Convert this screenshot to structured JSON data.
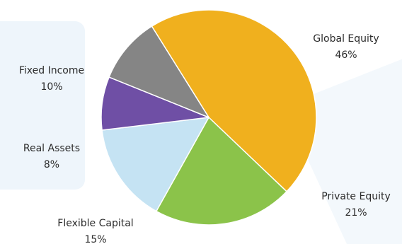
{
  "chart_data": {
    "type": "pie",
    "title": "",
    "slices": [
      {
        "label": "Global Equity",
        "value": 46,
        "value_label": "46%",
        "color": "#F0B01E"
      },
      {
        "label": "Private Equity",
        "value": 21,
        "value_label": "21%",
        "color": "#8BC34A"
      },
      {
        "label": "Flexible Capital",
        "value": 15,
        "value_label": "15%",
        "color": "#C5E3F3"
      },
      {
        "label": "Real Assets",
        "value": 8,
        "value_label": "8%",
        "color": "#6F4FA5"
      },
      {
        "label": "Fixed Income",
        "value": 10,
        "value_label": "10%",
        "color": "#858585"
      }
    ],
    "background_colors": {
      "left_panel": "#EEF5FB",
      "right_panel": "#F3F8FC"
    }
  }
}
